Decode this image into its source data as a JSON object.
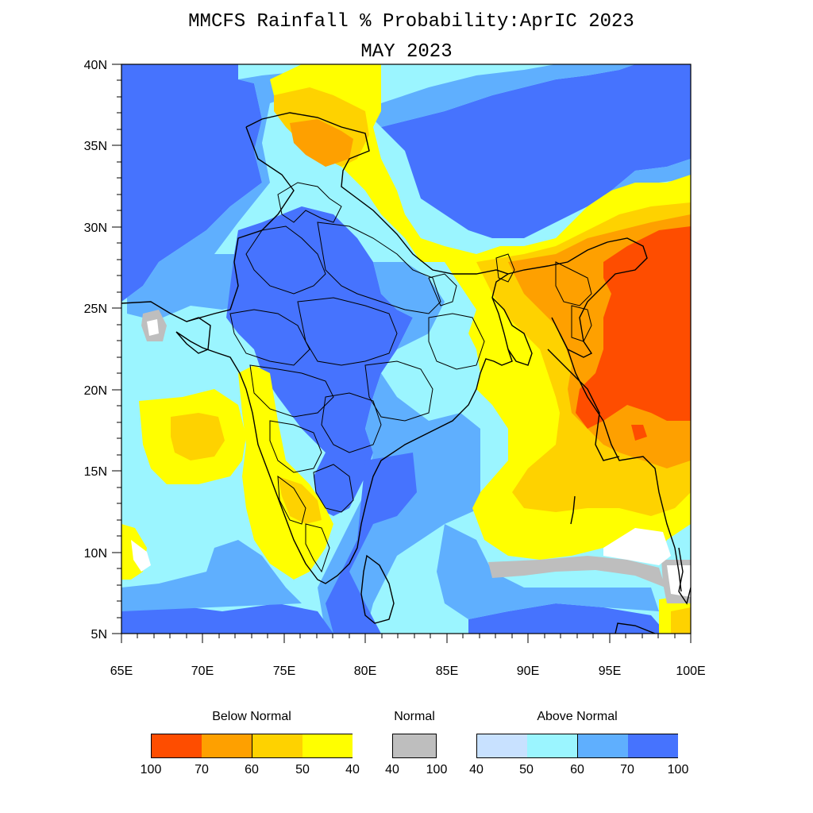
{
  "title": "MMCFS Rainfall % Probability:AprIC 2023",
  "subtitle": "MAY 2023",
  "axes": {
    "y_labels": [
      "40N",
      "35N",
      "30N",
      "25N",
      "20N",
      "15N",
      "10N",
      "5N"
    ],
    "x_labels": [
      "65E",
      "70E",
      "75E",
      "80E",
      "85E",
      "90E",
      "95E",
      "100E"
    ],
    "lon_range": [
      65,
      100
    ],
    "lat_range": [
      5,
      40
    ]
  },
  "colors": {
    "below_100_70": "#fe4d00",
    "below_70_60": "#fea000",
    "below_60_50": "#fed200",
    "below_50_40": "#ffff00",
    "normal": "#bebebe",
    "above_40_50": "#c8e1ff",
    "above_50_60": "#9bf5ff",
    "above_60_70": "#5faffe",
    "above_70_100": "#4673fe"
  },
  "legend": {
    "below": {
      "title": "Below Normal",
      "ticks": [
        "100",
        "70",
        "60",
        "50",
        "40"
      ],
      "colors": [
        "#fe4d00",
        "#fea000",
        "#fed200",
        "#ffff00"
      ]
    },
    "normal": {
      "title": "Normal",
      "ticks": [
        "40",
        "100"
      ],
      "colors": [
        "#bebebe"
      ]
    },
    "above": {
      "title": "Above Normal",
      "ticks": [
        "40",
        "50",
        "60",
        "70",
        "100"
      ],
      "colors": [
        "#c8e1ff",
        "#9bf5ff",
        "#5faffe",
        "#4673fe"
      ]
    }
  }
}
